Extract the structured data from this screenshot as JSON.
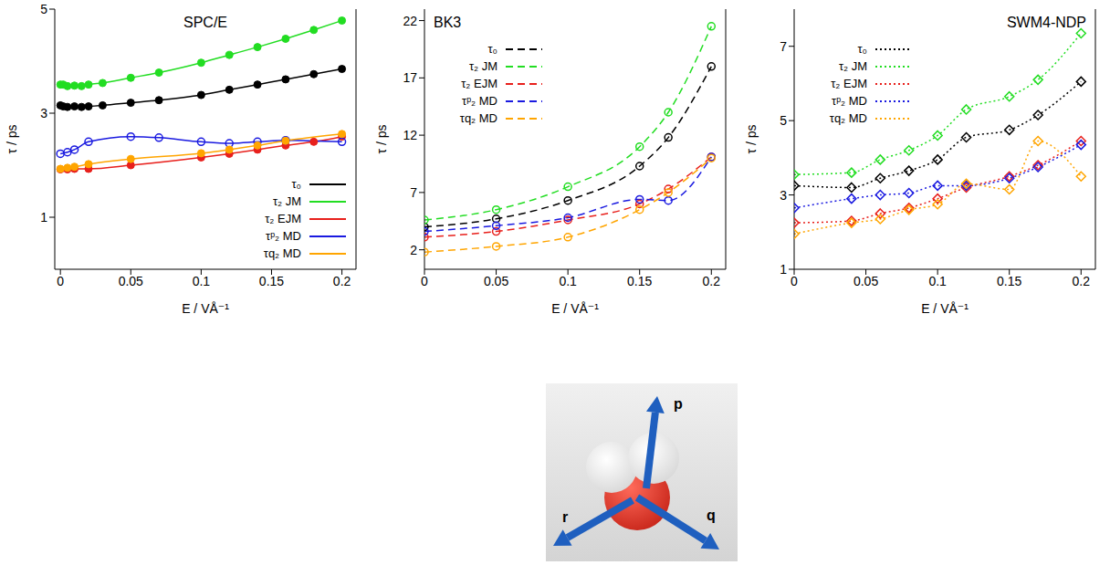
{
  "chart_data": [
    {
      "type": "line",
      "title": "SPC/E",
      "x_label": "E / VÅ⁻¹",
      "y_label": "τ / ps",
      "xlim": [
        -0.004,
        0.21
      ],
      "xticks": [
        0,
        0.05,
        0.1,
        0.15,
        0.2
      ],
      "ylim": [
        0,
        5
      ],
      "yticks": [
        1,
        3,
        5
      ],
      "legend": "lower right",
      "line_style": "solid",
      "series": [
        {
          "name": "τ₀",
          "color": "#000000",
          "marker": "circle",
          "x": [
            0,
            0.002,
            0.005,
            0.01,
            0.015,
            0.02,
            0.03,
            0.05,
            0.07,
            0.1,
            0.12,
            0.14,
            0.16,
            0.18,
            0.2
          ],
          "values": [
            3.15,
            3.13,
            3.12,
            3.13,
            3.12,
            3.13,
            3.15,
            3.2,
            3.25,
            3.35,
            3.45,
            3.55,
            3.65,
            3.75,
            3.85
          ]
        },
        {
          "name": "τ₂ JM",
          "color": "#22dd22",
          "marker": "circle",
          "x": [
            0,
            0.002,
            0.005,
            0.01,
            0.015,
            0.02,
            0.03,
            0.05,
            0.07,
            0.1,
            0.12,
            0.14,
            0.16,
            0.18,
            0.2
          ],
          "values": [
            3.55,
            3.55,
            3.52,
            3.53,
            3.52,
            3.55,
            3.58,
            3.68,
            3.78,
            3.97,
            4.12,
            4.27,
            4.43,
            4.6,
            4.78
          ]
        },
        {
          "name": "τ₂ EJM",
          "color": "#e8201c",
          "marker": "circle",
          "x": [
            0,
            0.005,
            0.01,
            0.02,
            0.05,
            0.1,
            0.12,
            0.14,
            0.16,
            0.18,
            0.2
          ],
          "values": [
            1.92,
            1.92,
            1.93,
            1.93,
            2.0,
            2.15,
            2.22,
            2.3,
            2.38,
            2.45,
            2.55
          ]
        },
        {
          "name": "τᵖ₂ MD",
          "color": "#1a1ae0",
          "marker": "open_circle",
          "x": [
            0,
            0.005,
            0.01,
            0.02,
            0.05,
            0.07,
            0.1,
            0.12,
            0.14,
            0.16,
            0.2
          ],
          "values": [
            2.22,
            2.25,
            2.3,
            2.45,
            2.55,
            2.53,
            2.45,
            2.42,
            2.45,
            2.48,
            2.45
          ]
        },
        {
          "name": "τq₂ MD",
          "color": "#ffa500",
          "marker": "circle",
          "x": [
            0,
            0.005,
            0.01,
            0.02,
            0.05,
            0.1,
            0.12,
            0.14,
            0.16,
            0.2
          ],
          "values": [
            1.93,
            1.95,
            1.97,
            2.02,
            2.12,
            2.23,
            2.3,
            2.38,
            2.47,
            2.6
          ]
        }
      ]
    },
    {
      "type": "line",
      "title": "BK3",
      "x_label": "E / VÅ⁻¹",
      "y_label": "τ / ps",
      "xlim": [
        0,
        0.21
      ],
      "xticks": [
        0,
        0.05,
        0.1,
        0.15,
        0.2
      ],
      "ylim": [
        0.3,
        23
      ],
      "yticks": [
        2,
        7,
        12,
        17,
        22
      ],
      "legend": "upper left",
      "line_style": "dashed",
      "series": [
        {
          "name": "τ₀",
          "color": "#000000",
          "marker": "open_circle",
          "x": [
            0,
            0.05,
            0.1,
            0.15,
            0.17,
            0.2
          ],
          "values": [
            4.0,
            4.7,
            6.3,
            9.3,
            11.8,
            18
          ]
        },
        {
          "name": "τ₂ JM",
          "color": "#22dd22",
          "marker": "open_circle",
          "x": [
            0,
            0.05,
            0.1,
            0.15,
            0.17,
            0.2
          ],
          "values": [
            4.6,
            5.5,
            7.5,
            11,
            14,
            21.5
          ]
        },
        {
          "name": "τ₂ EJM",
          "color": "#e8201c",
          "marker": "open_circle",
          "x": [
            0,
            0.05,
            0.1,
            0.15,
            0.17,
            0.2
          ],
          "values": [
            3.1,
            3.6,
            4.6,
            6.0,
            7.3,
            10.1
          ]
        },
        {
          "name": "τᵖ₂ MD",
          "color": "#1a1ae0",
          "marker": "open_circle",
          "x": [
            0,
            0.05,
            0.1,
            0.15,
            0.17,
            0.2
          ],
          "values": [
            3.6,
            4.1,
            4.8,
            6.4,
            6.3,
            10.1
          ]
        },
        {
          "name": "τq₂ MD",
          "color": "#ffa500",
          "marker": "open_circle",
          "x": [
            0,
            0.05,
            0.1,
            0.15,
            0.17,
            0.2
          ],
          "values": [
            1.8,
            2.3,
            3.1,
            5.5,
            7.0,
            10.0
          ]
        }
      ]
    },
    {
      "type": "line",
      "title": "SWM4-NDP",
      "x_label": "E / VÅ⁻¹",
      "y_label": "τ / ps",
      "xlim": [
        0,
        0.21
      ],
      "xticks": [
        0,
        0.05,
        0.1,
        0.15,
        0.2
      ],
      "ylim": [
        1,
        8
      ],
      "yticks": [
        1,
        3,
        5,
        7
      ],
      "legend": "upper left",
      "line_style": "dotted",
      "series": [
        {
          "name": "τ₀",
          "color": "#000000",
          "marker": "open_diamond",
          "x": [
            0,
            0.04,
            0.06,
            0.08,
            0.1,
            0.12,
            0.15,
            0.17,
            0.2
          ],
          "values": [
            3.25,
            3.2,
            3.45,
            3.65,
            3.95,
            4.55,
            4.75,
            5.15,
            6.05
          ]
        },
        {
          "name": "τ₂ JM",
          "color": "#22dd22",
          "marker": "open_diamond",
          "x": [
            0,
            0.04,
            0.06,
            0.08,
            0.1,
            0.12,
            0.15,
            0.17,
            0.2
          ],
          "values": [
            3.55,
            3.6,
            3.95,
            4.2,
            4.6,
            5.3,
            5.65,
            6.1,
            7.35
          ]
        },
        {
          "name": "τ₂ EJM",
          "color": "#e8201c",
          "marker": "open_diamond",
          "x": [
            0,
            0.04,
            0.06,
            0.08,
            0.1,
            0.12,
            0.15,
            0.17,
            0.2
          ],
          "values": [
            2.25,
            2.3,
            2.5,
            2.65,
            2.9,
            3.2,
            3.5,
            3.8,
            4.45
          ]
        },
        {
          "name": "τᵖ₂ MD",
          "color": "#1a1ae0",
          "marker": "open_diamond",
          "x": [
            0,
            0.04,
            0.06,
            0.08,
            0.1,
            0.12,
            0.15,
            0.17,
            0.2
          ],
          "values": [
            2.65,
            2.9,
            3.0,
            3.05,
            3.25,
            3.25,
            3.45,
            3.75,
            4.35
          ]
        },
        {
          "name": "τq₂ MD",
          "color": "#ffa500",
          "marker": "open_diamond",
          "x": [
            0,
            0.04,
            0.06,
            0.08,
            0.1,
            0.12,
            0.15,
            0.17,
            0.2
          ],
          "values": [
            1.95,
            2.25,
            2.35,
            2.6,
            2.75,
            3.3,
            3.15,
            4.45,
            3.5
          ]
        }
      ]
    }
  ],
  "diagram": {
    "labels": [
      "p",
      "q",
      "r"
    ]
  }
}
